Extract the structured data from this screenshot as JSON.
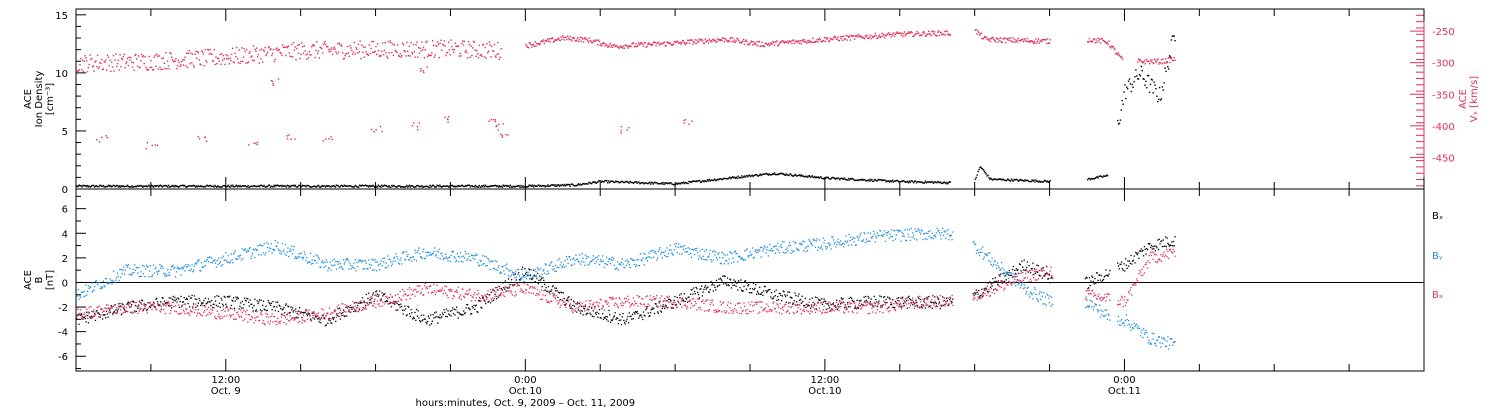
{
  "chart_data": {
    "type": "scatter",
    "x_axis": {
      "label": "hours:minutes, Oct.  9, 2009 – Oct. 11, 2009",
      "range_hours": [
        -18,
        36
      ],
      "ticks": [
        {
          "hour": -12,
          "time": "12:00",
          "date": "Oct. 9"
        },
        {
          "hour": 0,
          "time": "0:00",
          "date": "Oct.10"
        },
        {
          "hour": 12,
          "time": "12:00",
          "date": "Oct.10"
        },
        {
          "hour": 24,
          "time": "0:00",
          "date": "Oct.11"
        }
      ]
    },
    "panels": [
      {
        "id": "density-speed",
        "left_axis": {
          "label_lines": [
            "ACE",
            "Ion Density",
            "[cm⁻³]"
          ],
          "range": [
            0,
            15.5
          ],
          "ticks": [
            0,
            5,
            10,
            15
          ],
          "color": "#000000"
        },
        "right_axis": {
          "label_lines": [
            "ACE",
            "Vₓ [km/s]"
          ],
          "range": [
            -500,
            -215
          ],
          "ticks": [
            -250,
            -300,
            -350,
            -400,
            -450
          ],
          "color": "#e0305a"
        },
        "series": [
          {
            "axis": "left",
            "color": "#000000",
            "segments": [
              {
                "x": [
                  -18,
                  -12,
                  -6,
                  -2,
                  0,
                  2,
                  3,
                  6,
                  9,
                  10,
                  12,
                  15,
                  17
                ],
                "y": [
                  0.3,
                  0.3,
                  0.3,
                  0.3,
                  0.3,
                  0.4,
                  0.7,
                  0.5,
                  1.2,
                  1.4,
                  1.0,
                  0.7,
                  0.6
                ]
              },
              {
                "x": [
                  18,
                  18.2,
                  18.6,
                  21
                ],
                "y": [
                  0.9,
                  2.0,
                  0.9,
                  0.7
                ]
              },
              {
                "x": [
                  22.5,
                  23.3
                ],
                "y": [
                  0.9,
                  1.2
                ]
              },
              {
                "x": [
                  23.7,
                  24.0,
                  24.6,
                  25.4,
                  26.0
                ],
                "y": [
                  5.5,
                  8.5,
                  10.0,
                  8.0,
                  13.5
                ]
              }
            ]
          },
          {
            "axis": "right",
            "color": "#e0305a",
            "segments": [
              {
                "x": [
                  -18,
                  -15,
                  -12,
                  -9,
                  -6,
                  -3,
                  -1
                ],
                "y": [
                  -300,
                  -297,
                  -290,
                  -280,
                  -278,
                  -277,
                  -280
                ]
              },
              {
                "x": [
                  0,
                  1.5,
                  2.5,
                  3.5,
                  6,
                  8,
                  9.5,
                  12,
                  15,
                  17
                ],
                "y": [
                  -272,
                  -260,
                  -263,
                  -273,
                  -268,
                  -262,
                  -270,
                  -262,
                  -254,
                  -252
                ]
              },
              {
                "x": [
                  18,
                  18.4,
                  19,
                  21
                ],
                "y": [
                  -248,
                  -262,
                  -263,
                  -265
                ]
              },
              {
                "x": [
                  22.5,
                  23.3,
                  23.9
                ],
                "y": [
                  -262,
                  -266,
                  -295
                ]
              },
              {
                "x": [
                  24.5,
                  25.5,
                  26.0
                ],
                "y": [
                  -297,
                  -297,
                  -293
                ]
              }
            ],
            "scatter_points": [
              {
                "x": -17,
                "y": -420
              },
              {
                "x": -15,
                "y": -430
              },
              {
                "x": -13,
                "y": -420
              },
              {
                "x": -11,
                "y": -425
              },
              {
                "x": -9.5,
                "y": -415
              },
              {
                "x": -8,
                "y": -420
              },
              {
                "x": -6,
                "y": -405
              },
              {
                "x": -4.5,
                "y": -400
              },
              {
                "x": -3,
                "y": -390
              },
              {
                "x": -1.4,
                "y": -395
              },
              {
                "x": -1.1,
                "y": -400
              },
              {
                "x": -0.9,
                "y": -418
              },
              {
                "x": 4,
                "y": -405
              },
              {
                "x": 6.5,
                "y": -395
              },
              {
                "x": -4,
                "y": -310
              },
              {
                "x": -10,
                "y": -330
              }
            ]
          }
        ]
      },
      {
        "id": "magnetic-field",
        "left_axis": {
          "label_lines": [
            "ACE",
            "B",
            "[nT]"
          ],
          "range": [
            -7.2,
            7.6
          ],
          "ticks": [
            6,
            4,
            2,
            0,
            -2,
            -4,
            -6
          ],
          "color": "#000000"
        },
        "zero_line": true,
        "series": [
          {
            "name": "Bₓ",
            "color": "#000000",
            "x": [
              -18,
              -16,
              -14,
              -12,
              -10,
              -8,
              -6,
              -4,
              -2,
              0,
              2,
              4,
              6,
              8,
              10,
              12,
              14,
              16,
              17,
              18,
              20,
              21,
              22.5,
              24,
              25,
              26
            ],
            "y": [
              -3.0,
              -2.0,
              -1.5,
              -1.5,
              -2.0,
              -3.0,
              -1.0,
              -3.0,
              -2.0,
              1.0,
              -2.0,
              -3.0,
              -1.5,
              0.2,
              -1.0,
              -1.8,
              -1.5,
              -1.6,
              -1.6,
              -1.0,
              1.5,
              0.5,
              0.0,
              1.5,
              3.0,
              3.5
            ]
          },
          {
            "name": "Bᵧ",
            "color": "#1f8ee0",
            "x": [
              -18,
              -16,
              -14,
              -12,
              -10,
              -8,
              -6,
              -4,
              -2,
              0,
              2,
              4,
              6,
              8,
              10,
              12,
              14,
              16,
              17,
              18,
              20,
              21,
              22.5,
              23.5,
              24,
              25,
              26
            ],
            "y": [
              -1.0,
              1.0,
              1.0,
              2.0,
              3.0,
              1.5,
              1.5,
              2.5,
              2.0,
              0.5,
              2.0,
              1.5,
              2.8,
              2.0,
              2.8,
              3.2,
              3.8,
              4.0,
              4.0,
              3.0,
              -0.5,
              -1.5,
              -1.5,
              -3.0,
              -3.0,
              -4.5,
              -5.0
            ]
          },
          {
            "name": "Bₔ",
            "color": "#e0305a",
            "x": [
              -18,
              -16,
              -14,
              -12,
              -10,
              -8,
              -6,
              -4,
              -2,
              0,
              2,
              4,
              6,
              8,
              10,
              12,
              14,
              16,
              17,
              18,
              20,
              21,
              22.5,
              24,
              25,
              26
            ],
            "y": [
              -2.5,
              -2.0,
              -2.0,
              -2.5,
              -3.0,
              -2.5,
              -1.5,
              -0.5,
              -1.0,
              -0.5,
              -2.0,
              -1.5,
              -1.5,
              -2.0,
              -2.0,
              -2.0,
              -2.0,
              -1.5,
              -1.5,
              -1.0,
              0.5,
              1.0,
              -1.0,
              -1.5,
              2.0,
              2.5
            ]
          }
        ],
        "legend": {
          "placement": "right",
          "entries": [
            "Bₓ",
            "Bᵧ",
            "Bₔ"
          ]
        }
      }
    ]
  }
}
